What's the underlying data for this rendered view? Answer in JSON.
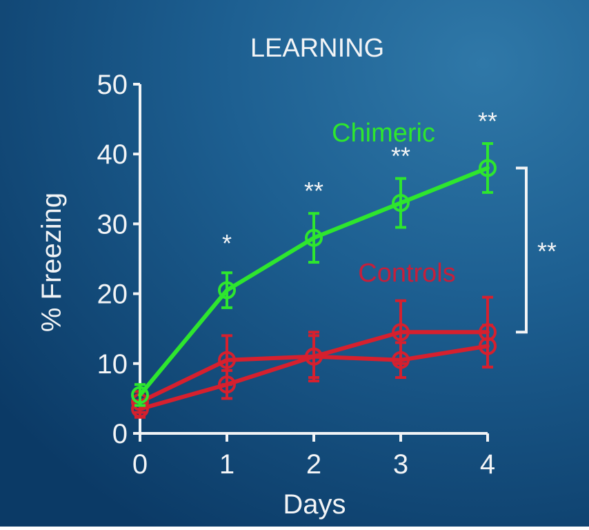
{
  "colors": {
    "background_dark": "#0b3a66",
    "background_mid": "#1d5f91",
    "background_light": "#2f78a8",
    "axis": "#f2f4f6",
    "text": "#f2f4f6",
    "chimeric": "#2ee62e",
    "controls": "#d6202e",
    "controls_label": "#c61f3b",
    "significance": "#f2f4f6"
  },
  "chart_data": {
    "type": "line",
    "title": "LEARNING",
    "xlabel": "Days",
    "ylabel": "% Freezing",
    "x": [
      0,
      1,
      2,
      3,
      4
    ],
    "xlim": [
      0,
      4
    ],
    "ylim": [
      0,
      50
    ],
    "xticks": [
      "0",
      "1",
      "2",
      "3",
      "4"
    ],
    "yticks": [
      "0",
      "10",
      "20",
      "30",
      "40",
      "50"
    ],
    "grid": false,
    "series": [
      {
        "name": "Chimeric",
        "color": "#2ee62e",
        "marker": "open-circle",
        "values": [
          5.5,
          20.5,
          28,
          33,
          38
        ],
        "errors": [
          1.5,
          2.5,
          3.5,
          3.5,
          3.5
        ]
      },
      {
        "name": "Controls",
        "color": "#d6202e",
        "marker": "open-circle",
        "values": [
          4.5,
          10.5,
          11,
          14.5,
          14.5
        ],
        "errors": [
          1.5,
          3.5,
          3.5,
          4.5,
          5
        ]
      },
      {
        "name": "Controls",
        "color": "#d6202e",
        "marker": "open-circle",
        "values": [
          3.5,
          7,
          11,
          10.5,
          12.5
        ],
        "errors": [
          1.2,
          2,
          3,
          2.5,
          3
        ]
      }
    ],
    "annotations": [
      {
        "text": "*",
        "x": 1,
        "y": 26
      },
      {
        "text": "**",
        "x": 2,
        "y": 33.5
      },
      {
        "text": "**",
        "x": 3,
        "y": 38.5
      },
      {
        "text": "**",
        "x": 4,
        "y": 43.5
      }
    ],
    "bracket": {
      "label": "**",
      "y_top": 38,
      "y_bottom": 14.5
    }
  }
}
